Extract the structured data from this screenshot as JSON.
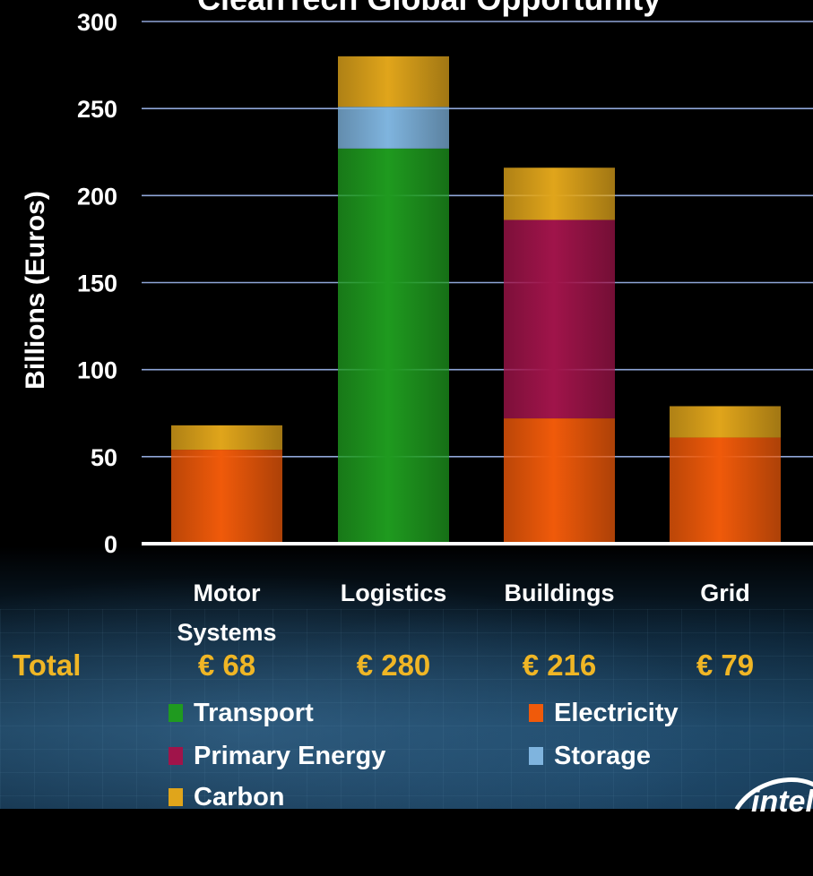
{
  "chart_data": {
    "type": "bar",
    "stacked": true,
    "title": "CleanTech Global Opportunity",
    "xlabel": "",
    "ylabel": "Billions (Euros)",
    "ylim": [
      0,
      300
    ],
    "yticks": [
      0,
      50,
      100,
      150,
      200,
      250,
      300
    ],
    "grid": true,
    "categories": [
      "Motor Systems",
      "Logistics",
      "Buildings",
      "Grid"
    ],
    "category_lines": [
      [
        "Motor",
        "Systems"
      ],
      [
        "Logistics"
      ],
      [
        "Buildings"
      ],
      [
        "Grid"
      ]
    ],
    "series": [
      {
        "name": "Electricity",
        "color": "#f05a0a",
        "values": [
          54,
          0,
          72,
          61
        ]
      },
      {
        "name": "Transport",
        "color": "#1f9a1f",
        "values": [
          0,
          227,
          0,
          0
        ]
      },
      {
        "name": "Primary Energy",
        "color": "#a0144a",
        "values": [
          0,
          0,
          114,
          0
        ]
      },
      {
        "name": "Storage",
        "color": "#7fb4de",
        "values": [
          0,
          24,
          0,
          0
        ]
      },
      {
        "name": "Carbon",
        "color": "#e0a51b",
        "values": [
          14,
          29,
          30,
          18
        ]
      }
    ],
    "totals_label": "Total",
    "totals": [
      "€ 68",
      "€ 280",
      "€ 216",
      "€ 79"
    ]
  },
  "legend": {
    "items": [
      {
        "label": "Transport",
        "color": "#1f9a1f"
      },
      {
        "label": "Electricity",
        "color": "#f05a0a"
      },
      {
        "label": "Primary Energy",
        "color": "#a0144a"
      },
      {
        "label": "Storage",
        "color": "#7fb4de"
      },
      {
        "label": "Carbon",
        "color": "#e0a51b"
      }
    ]
  },
  "brand": {
    "logo_text": "intel",
    "logo_icon": "intel-logo-icon"
  }
}
